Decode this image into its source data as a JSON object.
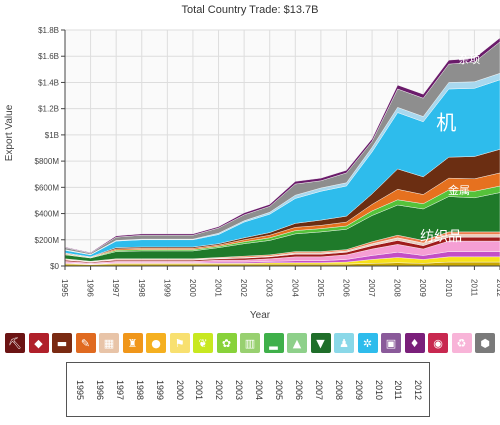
{
  "chart_data": {
    "type": "area",
    "stacked": true,
    "title": "Total Country Trade: $13.7B",
    "xlabel": "Year",
    "ylabel": "Export Value",
    "x": [
      1995,
      1996,
      1997,
      1998,
      1999,
      2000,
      2001,
      2002,
      2003,
      2004,
      2005,
      2006,
      2007,
      2008,
      2009,
      2010,
      2011,
      2012
    ],
    "x_tick_labels": [
      "1995",
      "1996",
      "1997",
      "1998",
      "1999",
      "2000",
      "2001",
      "2002",
      "2003",
      "2004",
      "2005",
      "2006",
      "2007",
      "2008",
      "2009",
      "2010",
      "2011",
      "2012"
    ],
    "ylim": [
      0,
      1800000000
    ],
    "y_ticks": [
      0,
      200000000,
      400000000,
      600000000,
      800000000,
      1000000000,
      1200000000,
      1400000000,
      1600000000,
      1800000000
    ],
    "y_tick_labels": [
      "$0",
      "$200M",
      "$400M",
      "$600M",
      "$800M",
      "$1B",
      "$1.2B",
      "$1.4B",
      "$1.6B",
      "$1.8B"
    ],
    "grid": true,
    "series": [
      {
        "color": "#c8a600",
        "values": [
          15000000,
          10000000,
          15000000,
          15000000,
          15000000,
          15000000,
          15000000,
          15000000,
          15000000,
          15000000,
          15000000,
          15000000,
          20000000,
          25000000,
          20000000,
          30000000,
          30000000,
          30000000
        ]
      },
      {
        "color": "#f7e11a",
        "values": [
          5000000,
          3000000,
          5000000,
          5000000,
          5000000,
          5000000,
          5000000,
          5000000,
          10000000,
          10000000,
          10000000,
          15000000,
          30000000,
          40000000,
          30000000,
          40000000,
          40000000,
          40000000
        ]
      },
      {
        "color": "#c44ec6",
        "values": [
          5000000,
          3000000,
          5000000,
          5000000,
          5000000,
          5000000,
          10000000,
          10000000,
          10000000,
          15000000,
          15000000,
          20000000,
          30000000,
          40000000,
          30000000,
          40000000,
          40000000,
          40000000
        ]
      },
      {
        "color": "#f59fd4",
        "values": [
          10000000,
          7000000,
          10000000,
          10000000,
          10000000,
          10000000,
          15000000,
          15000000,
          20000000,
          30000000,
          30000000,
          35000000,
          50000000,
          60000000,
          50000000,
          80000000,
          80000000,
          80000000
        ]
      },
      {
        "color": "#a01c1c",
        "values": [
          10000000,
          7000000,
          10000000,
          10000000,
          10000000,
          10000000,
          10000000,
          15000000,
          15000000,
          20000000,
          20000000,
          20000000,
          25000000,
          30000000,
          25000000,
          30000000,
          30000000,
          30000000
        ]
      },
      {
        "color": "#e8cfc0",
        "values": [
          5000000,
          3000000,
          5000000,
          5000000,
          5000000,
          5000000,
          5000000,
          5000000,
          5000000,
          10000000,
          10000000,
          10000000,
          15000000,
          20000000,
          20000000,
          20000000,
          20000000,
          20000000
        ]
      },
      {
        "color": "#ed7c4a",
        "values": [
          5000000,
          3000000,
          5000000,
          5000000,
          5000000,
          5000000,
          5000000,
          10000000,
          10000000,
          10000000,
          10000000,
          10000000,
          15000000,
          20000000,
          20000000,
          20000000,
          20000000,
          20000000
        ]
      },
      {
        "color": "#1f7a2a",
        "values": [
          30000000,
          25000000,
          55000000,
          60000000,
          60000000,
          60000000,
          75000000,
          95000000,
          110000000,
          135000000,
          150000000,
          155000000,
          200000000,
          230000000,
          240000000,
          270000000,
          260000000,
          300000000
        ]
      },
      {
        "color": "#55c23a",
        "values": [
          5000000,
          3000000,
          10000000,
          10000000,
          10000000,
          10000000,
          10000000,
          15000000,
          20000000,
          25000000,
          25000000,
          25000000,
          35000000,
          40000000,
          40000000,
          50000000,
          50000000,
          50000000
        ]
      },
      {
        "color": "#e6711f",
        "values": [
          5000000,
          3000000,
          10000000,
          10000000,
          10000000,
          10000000,
          10000000,
          15000000,
          20000000,
          25000000,
          25000000,
          30000000,
          50000000,
          80000000,
          70000000,
          90000000,
          95000000,
          100000000
        ]
      },
      {
        "color": "#6b2e12",
        "values": [
          5000000,
          3000000,
          10000000,
          10000000,
          10000000,
          10000000,
          10000000,
          15000000,
          20000000,
          30000000,
          40000000,
          45000000,
          80000000,
          155000000,
          135000000,
          160000000,
          170000000,
          180000000
        ]
      },
      {
        "color": "#2ebcec",
        "values": [
          20000000,
          15000000,
          50000000,
          55000000,
          55000000,
          55000000,
          70000000,
          120000000,
          140000000,
          190000000,
          220000000,
          230000000,
          320000000,
          430000000,
          420000000,
          520000000,
          520000000,
          530000000
        ]
      },
      {
        "color": "#a8d8ee",
        "values": [
          5000000,
          3000000,
          5000000,
          5000000,
          5000000,
          5000000,
          10000000,
          10000000,
          15000000,
          25000000,
          25000000,
          25000000,
          35000000,
          40000000,
          40000000,
          50000000,
          50000000,
          50000000
        ]
      },
      {
        "color": "#8e8e8e",
        "values": [
          15000000,
          10000000,
          25000000,
          30000000,
          30000000,
          30000000,
          40000000,
          45000000,
          45000000,
          85000000,
          55000000,
          75000000,
          45000000,
          140000000,
          140000000,
          140000000,
          150000000,
          240000000
        ]
      },
      {
        "color": "#6a1b6a",
        "values": [
          5000000,
          5000000,
          10000000,
          10000000,
          10000000,
          10000000,
          10000000,
          15000000,
          15000000,
          20000000,
          20000000,
          20000000,
          20000000,
          30000000,
          30000000,
          30000000,
          30000000,
          30000000
        ]
      }
    ],
    "annotations": [
      {
        "text": "杂项",
        "x": 2010.8,
        "y": 1550000000,
        "size": 11
      },
      {
        "text": "机",
        "x": 2009.9,
        "y": 1040000000,
        "size": 20
      },
      {
        "text": "金属",
        "x": 2010.4,
        "y": 550000000,
        "size": 11
      },
      {
        "text": "纺织品",
        "x": 2009.7,
        "y": 190000000,
        "size": 14
      }
    ]
  },
  "icon_bar": [
    {
      "icon": "pickaxe-icon",
      "color": "#6b1414",
      "glyph": "⛏"
    },
    {
      "icon": "tag-icon",
      "color": "#b0202a",
      "glyph": "◆"
    },
    {
      "icon": "cow-icon",
      "color": "#7a2a12",
      "glyph": "▬"
    },
    {
      "icon": "flask-icon",
      "color": "#e06a20",
      "glyph": "✎"
    },
    {
      "icon": "fabric-icon",
      "color": "#e8c4a8",
      "glyph": "▦"
    },
    {
      "icon": "bottle-icon",
      "color": "#f0961a",
      "glyph": "♜"
    },
    {
      "icon": "fruit-icon",
      "color": "#f5b020",
      "glyph": "●"
    },
    {
      "icon": "flag-icon",
      "color": "#f8e070",
      "glyph": "⚑"
    },
    {
      "icon": "leaf-icon",
      "color": "#c8e820",
      "glyph": "❦"
    },
    {
      "icon": "grain-icon",
      "color": "#88d23a",
      "glyph": "✿"
    },
    {
      "icon": "brick-icon",
      "color": "#98d070",
      "glyph": "▥"
    },
    {
      "icon": "shoe-icon",
      "color": "#3fb04a",
      "glyph": "▂"
    },
    {
      "icon": "tree-icon",
      "color": "#8ed08a",
      "glyph": "▲"
    },
    {
      "icon": "shirt-icon",
      "color": "#1f6e2a",
      "glyph": "▼"
    },
    {
      "icon": "dress-icon",
      "color": "#8ad8e8",
      "glyph": "♟"
    },
    {
      "icon": "gear-icon",
      "color": "#2ebcec",
      "glyph": "✲"
    },
    {
      "icon": "photo-icon",
      "color": "#8a5a9a",
      "glyph": "▣"
    },
    {
      "icon": "gem-icon",
      "color": "#7a1f7a",
      "glyph": "♦"
    },
    {
      "icon": "target-icon",
      "color": "#c82850",
      "glyph": "◉"
    },
    {
      "icon": "recycle-icon",
      "color": "#f8b4d8",
      "glyph": "♻"
    },
    {
      "icon": "cube-icon",
      "color": "#7a7a7a",
      "glyph": "⬢"
    }
  ],
  "year_selector": [
    "1995",
    "1996",
    "1997",
    "1998",
    "1999",
    "2000",
    "2001",
    "2002",
    "2003",
    "2004",
    "2005",
    "2006",
    "2007",
    "2008",
    "2009",
    "2010",
    "2011",
    "2012"
  ]
}
